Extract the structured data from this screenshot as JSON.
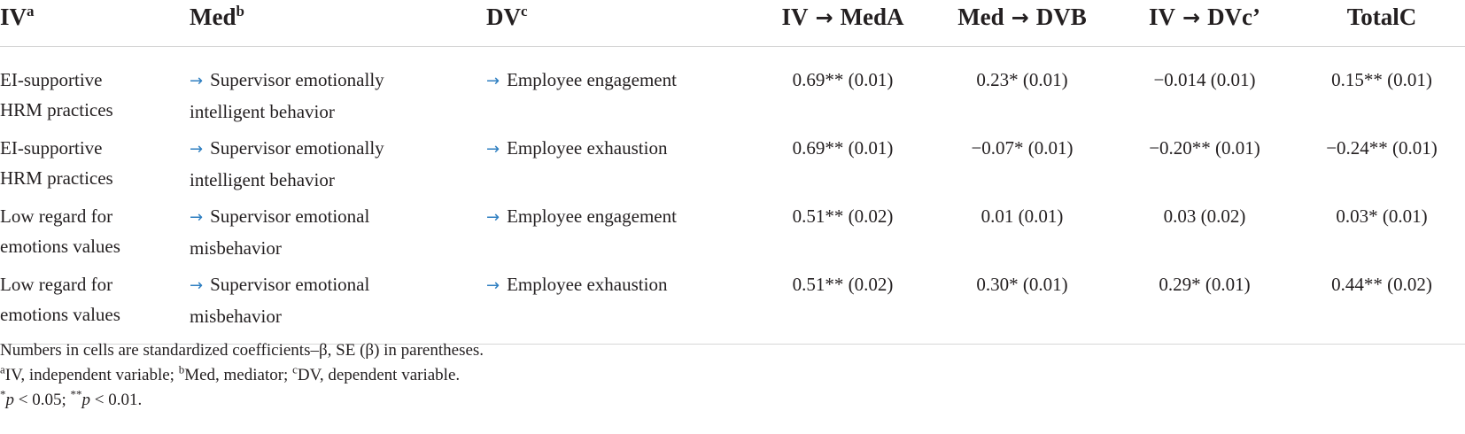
{
  "headers": {
    "iv": "IV",
    "iv_sup": "a",
    "med": "Med",
    "med_sup": "b",
    "dv": "DV",
    "dv_sup": "c",
    "a_left": "IV",
    "a_right": "MedA",
    "b_left": "Med",
    "b_right": "DVB",
    "c_left": "IV",
    "c_right": "DVc’",
    "total": "TotalC"
  },
  "arrow_symbol": "→",
  "rows": [
    {
      "iv": [
        "EI-supportive",
        "HRM practices"
      ],
      "med": [
        "Supervisor emotionally",
        "intelligent behavior"
      ],
      "dv": "Employee engagement",
      "a": "0.69** (0.01)",
      "b": "0.23* (0.01)",
      "c": "−0.014 (0.01)",
      "total": "0.15** (0.01)"
    },
    {
      "iv": [
        "EI-supportive",
        "HRM practices"
      ],
      "med": [
        "Supervisor emotionally",
        "intelligent behavior"
      ],
      "dv": "Employee exhaustion",
      "a": "0.69** (0.01)",
      "b": "−0.07* (0.01)",
      "c": "−0.20** (0.01)",
      "total": "−0.24** (0.01)"
    },
    {
      "iv": [
        "Low regard for",
        "emotions values"
      ],
      "med": [
        "Supervisor emotional",
        "misbehavior"
      ],
      "dv": "Employee engagement",
      "a": "0.51** (0.02)",
      "b": "0.01 (0.01)",
      "c": "0.03 (0.02)",
      "total": "0.03* (0.01)"
    },
    {
      "iv": [
        "Low regard for",
        "emotions values"
      ],
      "med": [
        "Supervisor emotional",
        "misbehavior"
      ],
      "dv": "Employee exhaustion",
      "a": "0.51** (0.02)",
      "b": "0.30* (0.01)",
      "c": "0.29* (0.01)",
      "total": "0.44** (0.02)"
    }
  ],
  "notes": {
    "line1": "Numbers in cells are standardized coefficients–β, SE (β) in parentheses.",
    "line2": {
      "sup_a": "a",
      "text_a": "IV, independent variable; ",
      "sup_b": "b",
      "text_b": "Med, mediator; ",
      "sup_c": "c",
      "text_c": "DV, dependent variable."
    },
    "line3": {
      "star1": "*",
      "p1": "p",
      "cond1": " < 0.05; ",
      "star2": "**",
      "p2": "p",
      "cond2": " < 0.01."
    }
  }
}
